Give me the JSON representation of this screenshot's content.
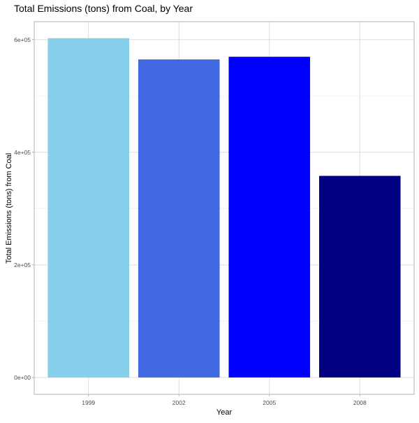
{
  "chart_data": {
    "type": "bar",
    "title": "Total Emissions (tons) from Coal, by Year",
    "xlabel": "Year",
    "ylabel": "Total Emissions (tons) from Coal",
    "categories": [
      "1999",
      "2002",
      "2005",
      "2008"
    ],
    "values": [
      602625,
      564941,
      569655,
      358084
    ],
    "colors": [
      "#87ceeb",
      "#4169e1",
      "#0000ff",
      "#000080"
    ],
    "ylim": [
      -30000,
      632000
    ],
    "yticks": [
      0,
      200000,
      400000,
      600000
    ],
    "ytick_labels": [
      "0e+00",
      "2e+05",
      "4e+05",
      "6e+05"
    ],
    "grid": true,
    "legend": "none"
  }
}
